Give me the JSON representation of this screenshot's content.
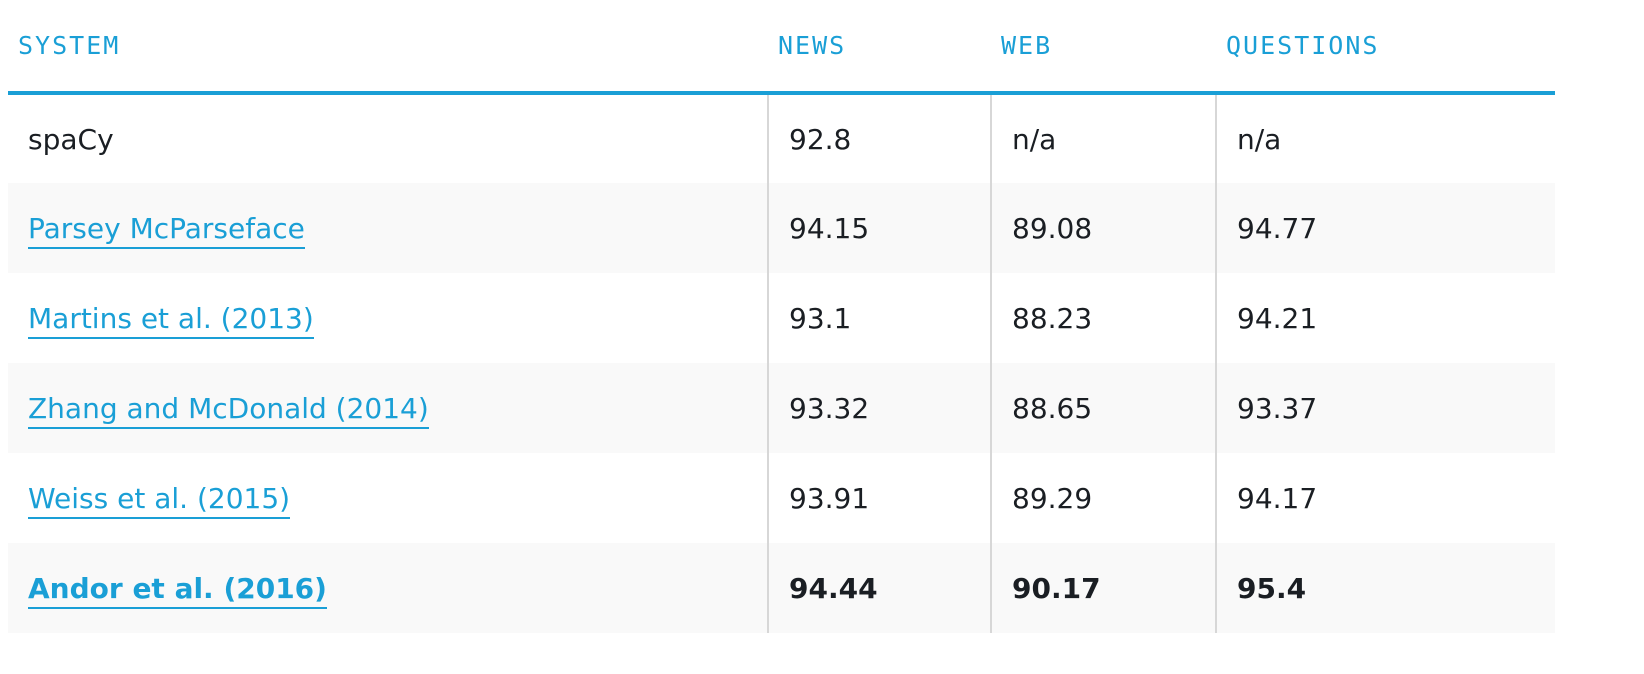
{
  "table": {
    "headers": [
      "SYSTEM",
      "NEWS",
      "WEB",
      "QUESTIONS"
    ],
    "rows": [
      {
        "system": "spaCy",
        "news": "92.8",
        "web": "n/a",
        "questions": "n/a"
      },
      {
        "system": "Parsey McParseface",
        "news": "94.15",
        "web": "89.08",
        "questions": "94.77"
      },
      {
        "system": "Martins et al. (2013)",
        "news": "93.1",
        "web": "88.23",
        "questions": "94.21"
      },
      {
        "system": "Zhang and McDonald (2014)",
        "news": "93.32",
        "web": "88.65",
        "questions": "93.37"
      },
      {
        "system": "Weiss et al. (2015)",
        "news": "93.91",
        "web": "89.29",
        "questions": "94.17"
      },
      {
        "system": "Andor et al. (2016)",
        "news": "94.44",
        "web": "90.17",
        "questions": "95.4"
      }
    ]
  },
  "colors": {
    "accent": "#1a9fd6",
    "text": "#1a1e23",
    "row_alt": "#f9f9f9",
    "divider": "#d7d7d7"
  }
}
